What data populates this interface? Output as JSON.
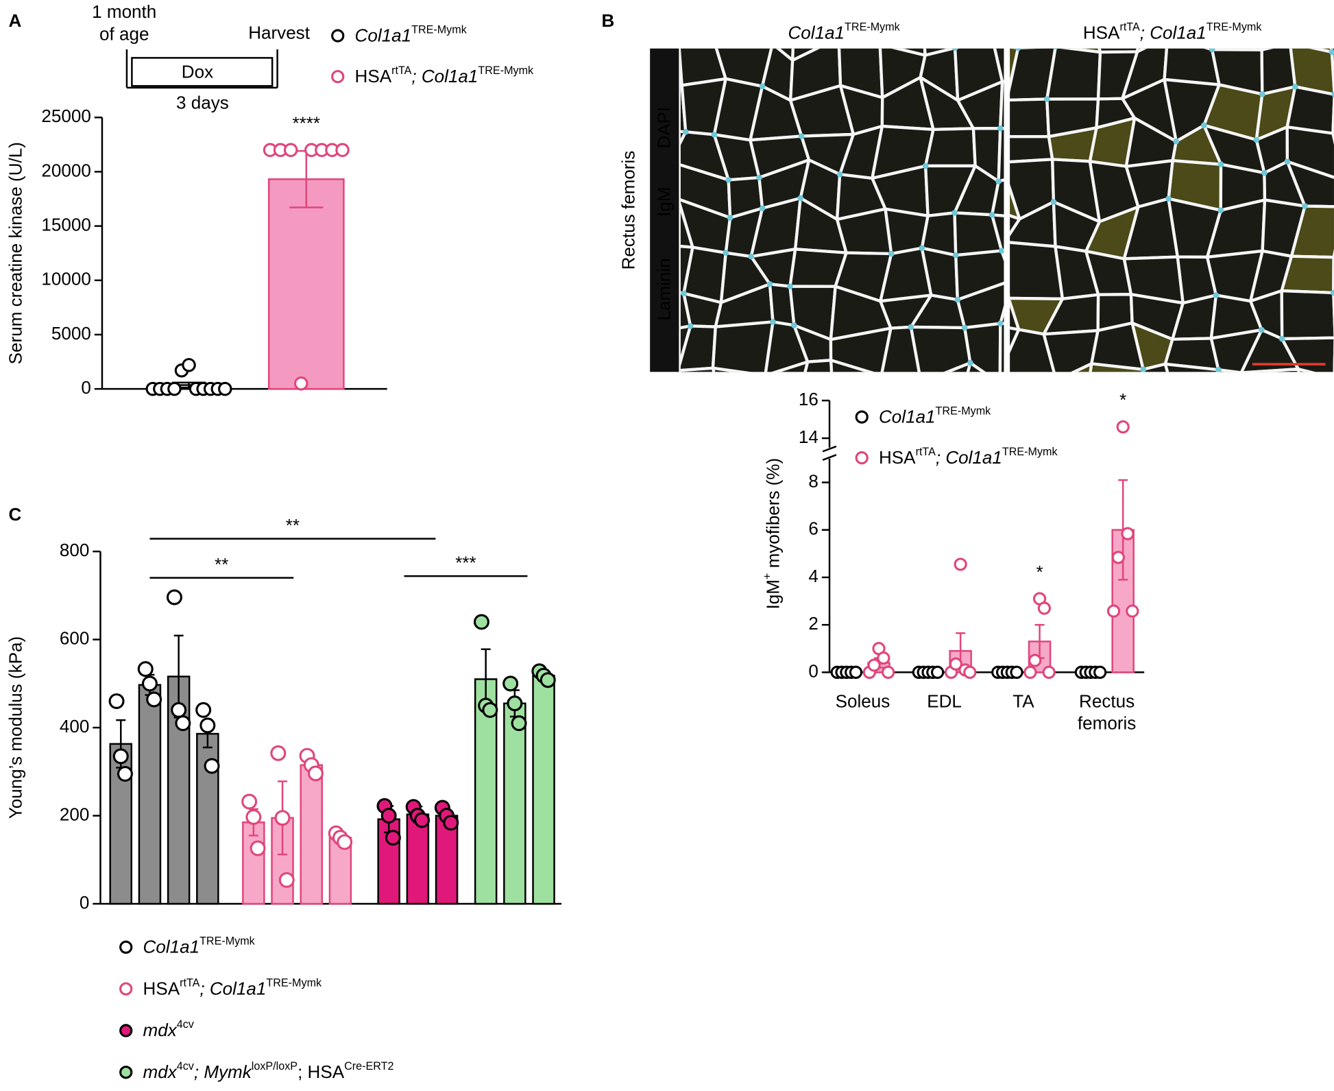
{
  "chart_data": [
    {
      "type": "bar",
      "panel": "A",
      "schematic": {
        "start": "1 month of age",
        "end": "Harvest",
        "treatment": "Dox",
        "duration": "3 days"
      },
      "ylabel": "Serum creatine kinase (U/L)",
      "ylim": [
        0,
        25000
      ],
      "yticks": [
        0,
        5000,
        10000,
        15000,
        20000,
        25000
      ],
      "series": [
        {
          "name": [
            {
              "t": "Col1a1",
              "s": "i"
            },
            {
              "t": "TRE-Mymk",
              "s": "sup"
            }
          ],
          "color": "#000000",
          "fill": "#ffffff",
          "marker_fill": "#ffffff",
          "values": [
            355
          ],
          "errors": [
            230
          ],
          "points": [
            [
              0,
              0,
              0,
              0,
              1700,
              2200,
              0,
              0,
              0,
              0,
              0
            ]
          ]
        },
        {
          "name": [
            {
              "t": "HSA",
              "s": "r"
            },
            {
              "t": "rtTA",
              "s": "sup"
            },
            {
              "t": "; Col1a1",
              "s": "i"
            },
            {
              "t": "TRE-Mymk",
              "s": "sup"
            }
          ],
          "color": "#e0457b",
          "fill": "#f49ac1",
          "marker_fill": "#ffffff",
          "values": [
            19312
          ],
          "errors": [
            2600
          ],
          "points": [
            [
              22000,
              22000,
              22000,
              500,
              22000,
              22000,
              22000,
              22000
            ]
          ]
        }
      ],
      "annotations": [
        {
          "text": "****",
          "series": 1,
          "index": 0
        }
      ]
    },
    {
      "type": "bar",
      "panel": "C",
      "ylabel": "Young’s modulus (kPa)",
      "ylim": [
        0,
        800
      ],
      "yticks": [
        0,
        200,
        400,
        600,
        800
      ],
      "series": [
        {
          "name": [
            {
              "t": "Col1a1",
              "s": "i"
            },
            {
              "t": "TRE-Mymk",
              "s": "sup"
            }
          ],
          "color": "#000000",
          "fill": "#8c8c8c",
          "marker_fill": "#ffffff",
          "values": [
            363,
            497,
            516,
            386
          ],
          "errors": [
            54,
            23,
            93,
            31
          ],
          "points": [
            [
              460,
              335,
              295
            ],
            [
              533,
              500,
              464
            ],
            [
              696,
              440,
              410
            ],
            [
              440,
              405,
              313
            ]
          ]
        },
        {
          "name": [
            {
              "t": "HSA",
              "s": "r"
            },
            {
              "t": "rtTA",
              "s": "sup"
            },
            {
              "t": "; Col1a1",
              "s": "i"
            },
            {
              "t": "TRE-Mymk",
              "s": "sup"
            }
          ],
          "color": "#e0457b",
          "fill": "#f7a8c8",
          "marker_fill": "#ffffff",
          "values": [
            185,
            195,
            315,
            150
          ],
          "errors": [
            30,
            83,
            10,
            10
          ],
          "points": [
            [
              232,
              197,
              126
            ],
            [
              342,
              195,
              54
            ],
            [
              336,
              315,
              296
            ],
            [
              160,
              150,
              140
            ]
          ]
        },
        {
          "name": [
            {
              "t": "mdx",
              "s": "i"
            },
            {
              "t": "4cv",
              "s": "sup"
            }
          ],
          "color": "#000000",
          "fill": "#e0187a",
          "marker_fill": "#e0187a",
          "values": [
            192,
            203,
            200
          ],
          "errors": [
            30,
            18,
            12
          ],
          "points": [
            [
              222,
              200,
              150
            ],
            [
              220,
              200,
              190
            ],
            [
              218,
              200,
              184
            ]
          ]
        },
        {
          "name": [
            {
              "t": "mdx",
              "s": "i"
            },
            {
              "t": "4cv",
              "s": "sup"
            },
            {
              "t": "; Mymk",
              "s": "i"
            },
            {
              "t": "loxP/loxP",
              "s": "sup"
            },
            {
              "t": "; HSA",
              "s": "r"
            },
            {
              "t": "Cre-ERT2",
              "s": "sup"
            }
          ],
          "color": "#000000",
          "fill": "#9ee0a0",
          "marker_fill": "#9ee0a0",
          "values": [
            510,
            455,
            518
          ],
          "errors": [
            68,
            30,
            10
          ],
          "points": [
            [
              640,
              450,
              440
            ],
            [
              500,
              455,
              410
            ],
            [
              528,
              518,
              508
            ]
          ]
        }
      ],
      "annotations": [
        {
          "text": "**"
        },
        {
          "text": "**"
        },
        {
          "text": "***"
        }
      ]
    },
    {
      "type": "bar",
      "panel": "B",
      "ylabel": [
        {
          "t": "IgM",
          "s": "r"
        },
        {
          "t": "+",
          "s": "sup"
        },
        {
          "t": " myofibers (%)",
          "s": "r"
        }
      ],
      "ylim_segments": [
        [
          0,
          9
        ],
        [
          13.5,
          16.3
        ]
      ],
      "yticks": [
        0,
        2,
        4,
        6,
        8,
        14,
        16
      ],
      "categories": [
        "Soleus",
        "EDL",
        "TA",
        "Rectus femoris"
      ],
      "series": [
        {
          "name": [
            {
              "t": "Col1a1",
              "s": "i"
            },
            {
              "t": "TRE-Mymk",
              "s": "sup"
            }
          ],
          "color": "#000000",
          "fill": "#ffffff",
          "marker_fill": "#ffffff",
          "values": [
            0,
            0,
            0,
            0
          ],
          "errors": [
            0,
            0,
            0,
            0
          ],
          "points": [
            [
              0,
              0,
              0,
              0,
              0
            ],
            [
              0,
              0,
              0,
              0,
              0
            ],
            [
              0,
              0,
              0,
              0,
              0
            ],
            [
              0,
              0,
              0,
              0,
              0
            ]
          ]
        },
        {
          "name": [
            {
              "t": "HSA",
              "s": "r"
            },
            {
              "t": "rtTA",
              "s": "sup"
            },
            {
              "t": "; Col1a1",
              "s": "i"
            },
            {
              "t": "TRE-Mymk",
              "s": "sup"
            }
          ],
          "color": "#e0457b",
          "fill": "#f7a8c8",
          "marker_fill": "#ffffff",
          "values": [
            0.4,
            0.9,
            1.3,
            6.0
          ],
          "errors": [
            0.2,
            0.75,
            0.7,
            2.1
          ],
          "points": [
            [
              0,
              0.3,
              1.0,
              0.6,
              0
            ],
            [
              0,
              0.35,
              4.55,
              0.1,
              0
            ],
            [
              0,
              0.5,
              3.1,
              2.7,
              0
            ],
            [
              2.58,
              4.84,
              14.6,
              5.84,
              2.58
            ]
          ]
        }
      ],
      "annotations": [
        {
          "text": "*",
          "series": 1,
          "index": 2
        },
        {
          "text": "*",
          "series": 1,
          "index": 3
        }
      ]
    }
  ],
  "image_panel": {
    "titles": [
      [
        {
          "t": "Col1a1",
          "s": "i"
        },
        {
          "t": "TRE-Mymk",
          "s": "sup"
        }
      ],
      [
        {
          "t": "HSA",
          "s": "r"
        },
        {
          "t": "rtTA",
          "s": "sup"
        },
        {
          "t": "; Col1a1",
          "s": "i"
        },
        {
          "t": "TRE-Mymk",
          "s": "sup"
        }
      ]
    ],
    "region": "Rectus femoris",
    "stains": [
      {
        "t": "Laminin",
        "color": "#ffffff"
      },
      {
        "t": "IgM",
        "color": "#f2d21b"
      },
      {
        "t": "DAPI",
        "color": "#6fc8d8"
      }
    ]
  }
}
